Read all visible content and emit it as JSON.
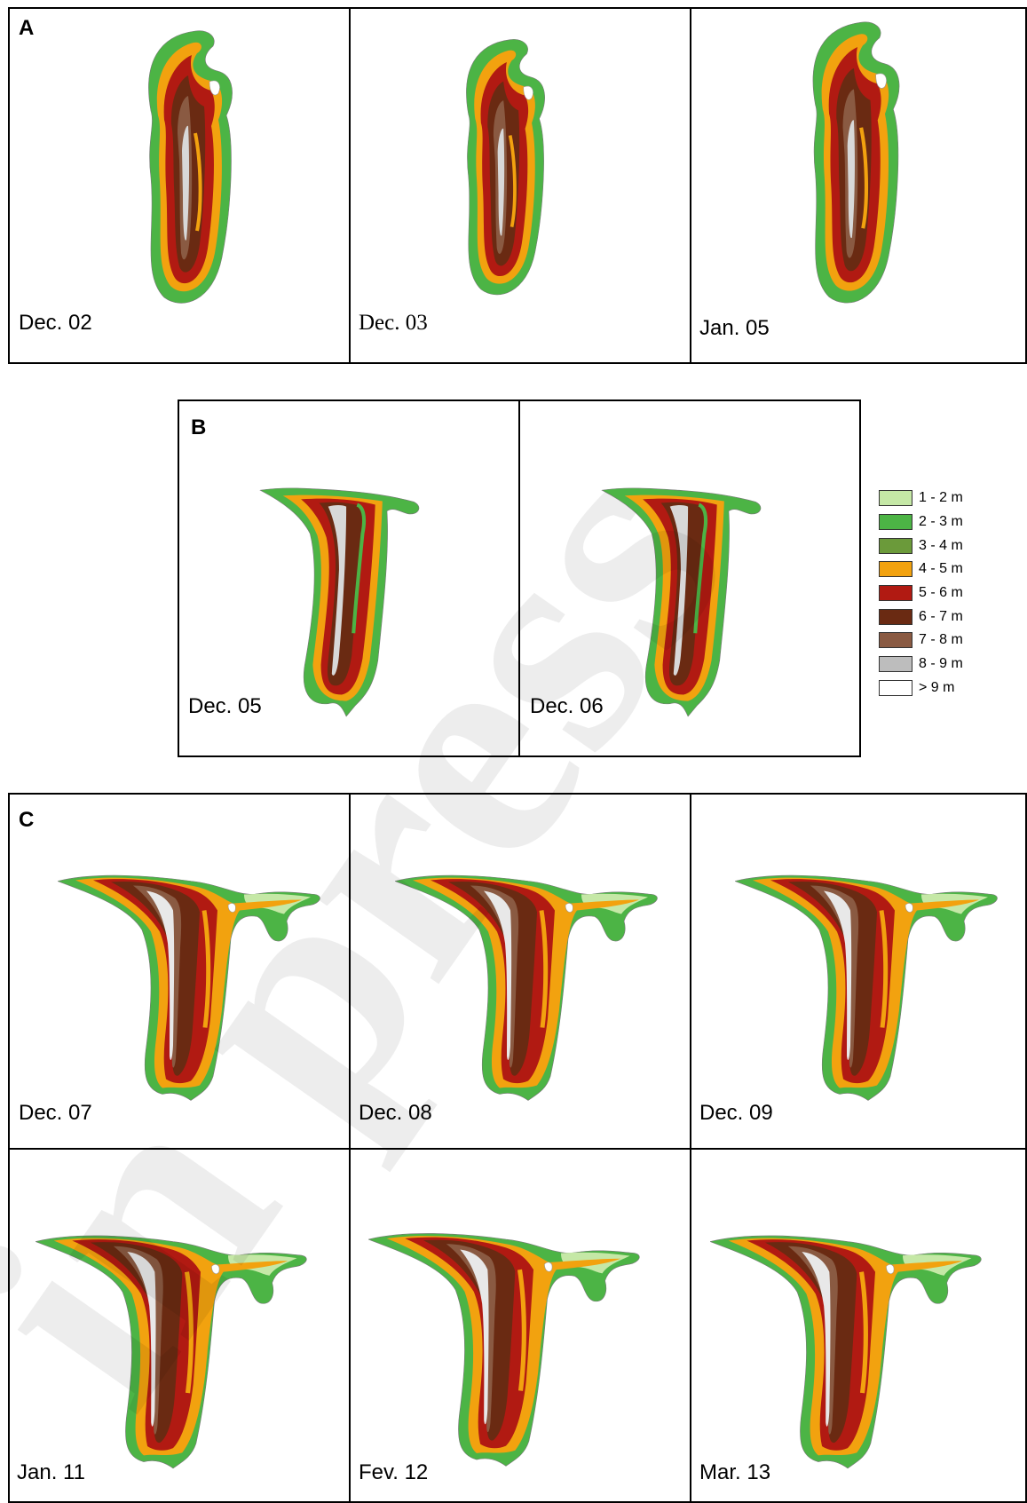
{
  "panels": {
    "a": {
      "label": "A",
      "maps": [
        {
          "date": "Dec. 02"
        },
        {
          "date": "Dec. 03"
        },
        {
          "date": "Jan. 05"
        }
      ]
    },
    "b": {
      "label": "B",
      "maps": [
        {
          "date": "Dec. 05"
        },
        {
          "date": "Dec. 06"
        }
      ]
    },
    "c": {
      "label": "C",
      "maps": [
        {
          "date": "Dec. 07"
        },
        {
          "date": "Dec. 08"
        },
        {
          "date": "Dec. 09"
        },
        {
          "date": "Jan. 11"
        },
        {
          "date": "Fev. 12"
        },
        {
          "date": "Mar. 13"
        }
      ]
    }
  },
  "legend": [
    {
      "label": "1 - 2 m",
      "color": "#c5e8a6"
    },
    {
      "label": "2 - 3 m",
      "color": "#4cb445"
    },
    {
      "label": "3 - 4 m",
      "color": "#6b9a3a"
    },
    {
      "label": "4 - 5 m",
      "color": "#f2a20f"
    },
    {
      "label": "5 - 6 m",
      "color": "#b11a12"
    },
    {
      "label": "6 - 7 m",
      "color": "#6a2a12"
    },
    {
      "label": "7 - 8 m",
      "color": "#8a5a42"
    },
    {
      "label": "8 - 9 m",
      "color": "#bdbdbd"
    },
    {
      "label": "> 9 m",
      "color": "#ffffff"
    }
  ],
  "watermark": "in press"
}
